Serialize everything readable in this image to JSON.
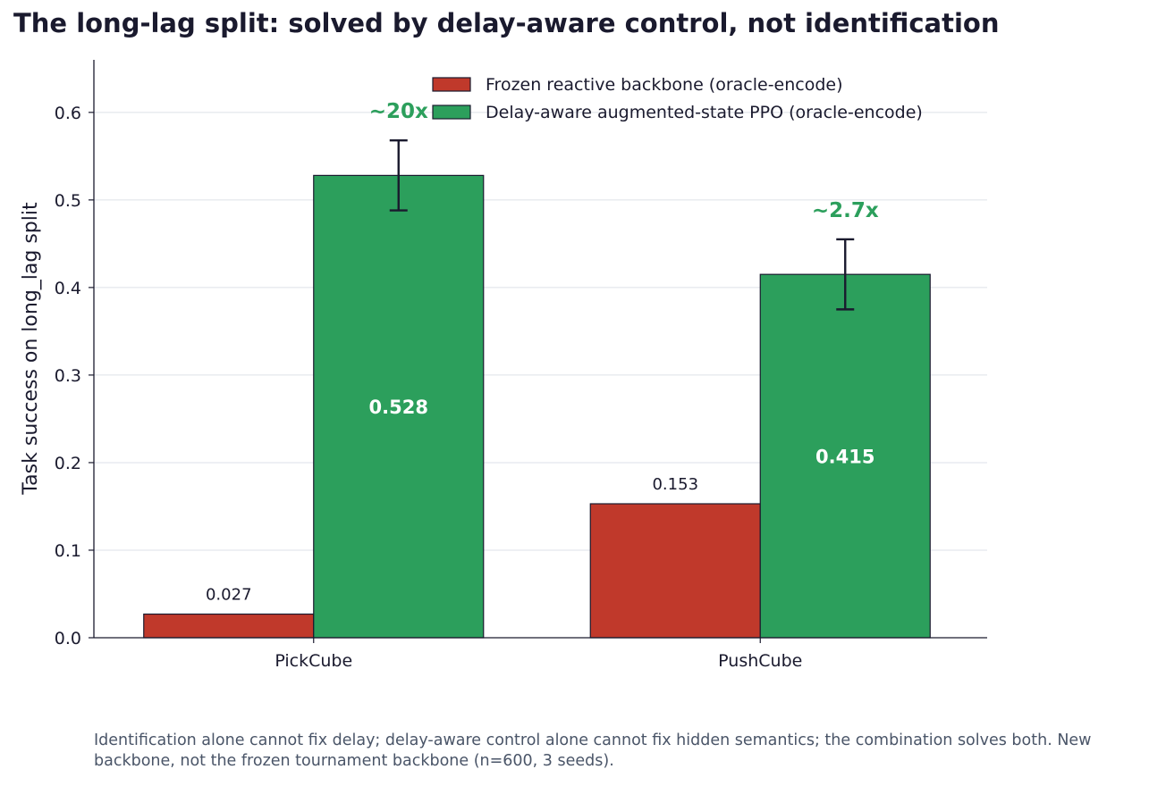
{
  "chart_data": {
    "type": "bar",
    "title": "The long-lag split: solved by delay-aware control, not identification",
    "ylabel": "Task success on long_lag split",
    "xlabel": "",
    "categories": [
      "PickCube",
      "PushCube"
    ],
    "ylim": [
      0,
      0.66
    ],
    "yticks": [
      "0.0",
      "0.1",
      "0.2",
      "0.3",
      "0.4",
      "0.5",
      "0.6"
    ],
    "grid": "horizontal",
    "legend_position": "top-right",
    "series": [
      {
        "name": "Frozen reactive backbone (oracle-encode)",
        "color": "#c0392b",
        "values": [
          0.027,
          0.153
        ],
        "labels": [
          "0.027",
          "0.153"
        ]
      },
      {
        "name": "Delay-aware augmented-state PPO (oracle-encode)",
        "color": "#2c9f5c",
        "values": [
          0.528,
          0.415
        ],
        "labels": [
          "0.528",
          "0.415"
        ],
        "error": [
          0.04,
          0.04
        ]
      }
    ],
    "annotations": [
      "~20x",
      "~2.7x"
    ],
    "annotation_color": "#2c9f5c"
  },
  "footnote": "Identification alone cannot fix delay; delay-aware control alone cannot fix hidden semantics; the combination solves both. New backbone, not the frozen tournament backbone (n=600, 3 seeds)."
}
